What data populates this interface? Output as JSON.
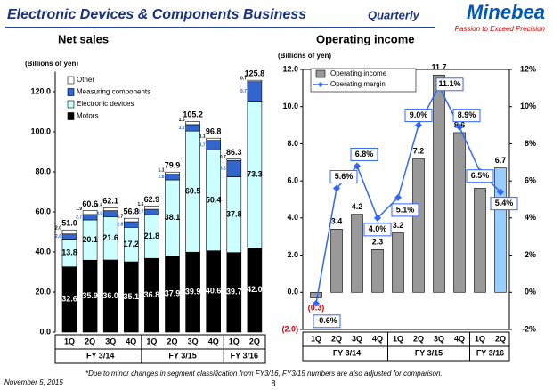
{
  "header": {
    "title": "Electronic Devices & Components Business",
    "subtitle": "Quarterly",
    "logo": "Minebea",
    "tagline": "Passion to Exceed Precision"
  },
  "chart_data": [
    {
      "type": "bar",
      "stacked": true,
      "title": "Net sales",
      "ylabel": "(Billions of yen)",
      "legend": "upper left",
      "groups": [
        {
          "label": "FY 3/14",
          "categories": [
            "1Q",
            "2Q",
            "3Q",
            "4Q"
          ]
        },
        {
          "label": "FY 3/15",
          "categories": [
            "1Q",
            "2Q",
            "3Q",
            "4Q"
          ]
        },
        {
          "label": "FY 3/16",
          "categories": [
            "1Q",
            "2Q"
          ]
        }
      ],
      "series": [
        {
          "name": "Motors",
          "color": "#000000",
          "values": [
            32.6,
            35.9,
            36.0,
            35.1,
            36.8,
            37.9,
            39.9,
            40.6,
            39.7,
            42.0
          ],
          "value_labels": [
            "32.6",
            "35.9",
            "36.0",
            "35.1",
            "36.8",
            "37.9",
            "39.9",
            "40.6",
            "39.7",
            "42.0"
          ]
        },
        {
          "name": "Electronic devices",
          "color": "#ccffff",
          "values": [
            13.8,
            20.1,
            21.6,
            17.2,
            21.8,
            38.1,
            60.5,
            50.4,
            37.8,
            73.3
          ],
          "value_labels": [
            "13.8",
            "20.1",
            "21.6",
            "17.2",
            "21.8",
            "38.1",
            "60.5",
            "50.4",
            "37.8",
            "73.3"
          ]
        },
        {
          "name": "Measuring components",
          "color": "#3366cc",
          "values": [
            2.6,
            2.7,
            3.0,
            2.8,
            2.7,
            2.8,
            3.2,
            4.7,
            8.2,
            9.7
          ],
          "value_labels": [
            "2.6",
            "2.7",
            "3.0",
            "2.8",
            "2.7",
            "2.8",
            "3.2",
            "4.7",
            "8.2",
            "9.7"
          ]
        },
        {
          "name": "Other",
          "color": "#ffffff",
          "values": [
            2.0,
            1.9,
            1.5,
            1.7,
            1.6,
            1.1,
            1.5,
            1.1,
            0.7,
            0.7
          ],
          "value_labels": [
            "2.0",
            "1.9",
            "1.5",
            "1.7",
            "1.6",
            "1.1",
            "1.5",
            "1.1",
            "0.7",
            "0.7"
          ]
        }
      ],
      "totals": {
        "values": [
          51.0,
          60.6,
          62.1,
          56.8,
          62.9,
          79.9,
          105.2,
          96.8,
          86.3,
          125.8
        ],
        "value_labels": [
          "51.0",
          "60.6",
          "62.1",
          "56.8",
          "62.9",
          "79.9",
          "105.2",
          "96.8",
          "86.3",
          "125.8"
        ]
      },
      "ylim": [
        0,
        130
      ],
      "yticks": [
        {
          "value": 0,
          "label": "0.0"
        },
        {
          "value": 20,
          "label": "20.0"
        },
        {
          "value": 40,
          "label": "40.0"
        },
        {
          "value": 60,
          "label": "60.0"
        },
        {
          "value": 80,
          "label": "80.0"
        },
        {
          "value": 100,
          "label": "100.0"
        },
        {
          "value": 120,
          "label": "120.0"
        }
      ]
    },
    {
      "type": "bar",
      "title": "Operating income",
      "ylabel": "(Billions of yen)",
      "legend": "upper left",
      "groups": [
        {
          "label": "FY 3/14",
          "categories": [
            "1Q",
            "2Q",
            "3Q",
            "4Q"
          ]
        },
        {
          "label": "FY 3/15",
          "categories": [
            "1Q",
            "2Q",
            "3Q",
            "4Q"
          ]
        },
        {
          "label": "FY 3/16",
          "categories": [
            "1Q",
            "2Q"
          ]
        }
      ],
      "series": [
        {
          "name": "Operating income",
          "colors": [
            "#999999",
            "#999999",
            "#999999",
            "#999999",
            "#999999",
            "#999999",
            "#999999",
            "#999999",
            "#999999",
            "#99ccff"
          ],
          "values": [
            -0.3,
            3.4,
            4.2,
            2.3,
            3.2,
            7.2,
            11.7,
            8.6,
            5.6,
            6.7
          ],
          "value_labels": [
            "(0.3)",
            "3.4",
            "4.2",
            "2.3",
            "3.2",
            "7.2",
            "11.7",
            "8.6",
            "5.6",
            "6.7"
          ]
        },
        {
          "name": "Operating margin",
          "type": "line",
          "axis": "y2",
          "color": "#3366ff",
          "values": [
            -0.6,
            5.6,
            6.8,
            4.0,
            5.1,
            9.0,
            11.1,
            8.9,
            6.5,
            5.4
          ],
          "value_labels": [
            "-0.6%",
            "5.6%",
            "6.8%",
            "4.0%",
            "5.1%",
            "9.0%",
            "11.1%",
            "8.9%",
            "6.5%",
            "5.4%"
          ]
        }
      ],
      "ylim": [
        -2,
        12
      ],
      "yticks": [
        {
          "value": -2,
          "label": "(2.0)"
        },
        {
          "value": 0,
          "label": "0.0"
        },
        {
          "value": 2,
          "label": "2.0"
        },
        {
          "value": 4,
          "label": "4.0"
        },
        {
          "value": 6,
          "label": "6.0"
        },
        {
          "value": 8,
          "label": "8.0"
        },
        {
          "value": 10,
          "label": "10.0"
        },
        {
          "value": 12,
          "label": "12.0"
        }
      ],
      "y2lim": [
        -2,
        12
      ],
      "y2ticks": [
        {
          "value": -2,
          "label": "-2%"
        },
        {
          "value": 0,
          "label": "0%"
        },
        {
          "value": 2,
          "label": "2%"
        },
        {
          "value": 4,
          "label": "4%"
        },
        {
          "value": 6,
          "label": "6%"
        },
        {
          "value": 8,
          "label": "8%"
        },
        {
          "value": 10,
          "label": "10%"
        },
        {
          "value": 12,
          "label": "12%"
        }
      ]
    }
  ],
  "footer": {
    "note": "*Due to minor changes in segment classification from FY3/16, FY3/15 numbers are also adjusted for comparison.",
    "date": "November 5, 2015",
    "page": "8"
  }
}
